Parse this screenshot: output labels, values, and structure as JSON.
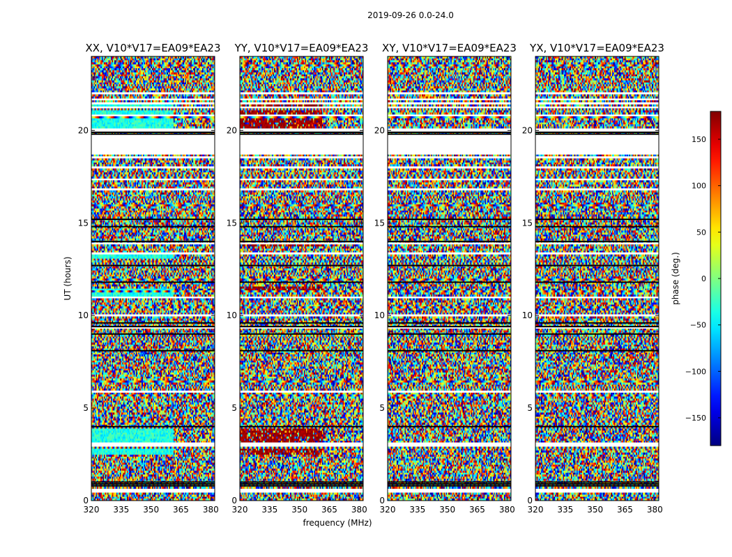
{
  "suptitle": "2019-09-26 0.0-24.0",
  "chart_data": {
    "type": "heatmap",
    "panels": [
      {
        "title": "XX, V10*V17=EA09*EA23",
        "mode": "xx"
      },
      {
        "title": "YY, V10*V17=EA09*EA23",
        "mode": "yy"
      },
      {
        "title": "XY, V10*V17=EA09*EA23",
        "mode": "cross"
      },
      {
        "title": "YX, V10*V17=EA09*EA23",
        "mode": "cross"
      }
    ],
    "xlabel": "frequency (MHz)",
    "ylabel": "UT (hours)",
    "xlim": [
      320,
      382
    ],
    "ylim": [
      0,
      24
    ],
    "xticks": [
      320,
      335,
      350,
      365,
      380
    ],
    "xtick_labels": [
      "320",
      "335",
      "350",
      "365",
      "380"
    ],
    "yticks": [
      0,
      5,
      10,
      15,
      20
    ],
    "ytick_labels": [
      "0",
      "5",
      "10",
      "15",
      "20"
    ],
    "colorbar": {
      "label": "phase (deg.)",
      "range": [
        -180,
        180
      ],
      "ticks": [
        150,
        100,
        50,
        0,
        -50,
        -100,
        -150
      ],
      "tick_labels": [
        "150",
        "100",
        "50",
        "0",
        "−50",
        "−100",
        "−150"
      ],
      "colormap": "jet"
    },
    "flagged_ut_ranges": [
      [
        18.7,
        19.8
      ]
    ],
    "flag_line_ut": [
      0.8,
      0.9,
      1.0,
      4.0,
      8.1,
      9.0,
      9.4,
      9.6,
      11.8,
      12.7,
      14.0,
      14.8,
      15.2,
      19.8,
      19.9
    ]
  }
}
